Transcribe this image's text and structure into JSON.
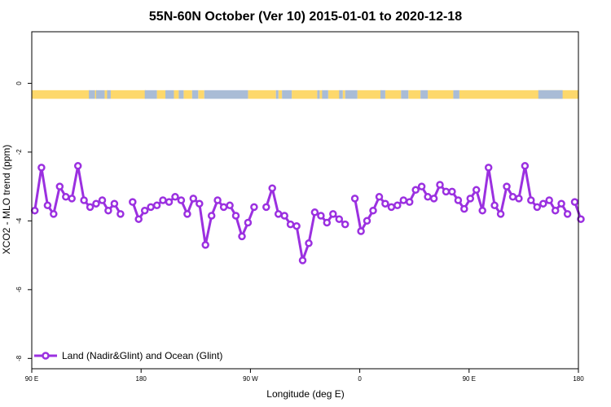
{
  "chart_data": {
    "type": "line",
    "title": "55N-60N October (Ver 10)   2015-01-01 to 2020-12-18",
    "xlabel": "Longitude (deg E)",
    "ylabel": "XCO2 - MLO trend (ppm)",
    "xlim": [
      90,
      540
    ],
    "ylim": [
      -8.3,
      1.5
    ],
    "x_tick_values": [
      90,
      180,
      270,
      360,
      450,
      540
    ],
    "x_tick_labels": [
      "90 E",
      "180",
      "90 W",
      "0",
      "90 E",
      "180"
    ],
    "y_tick_values": [
      0,
      -2,
      -4,
      -6,
      -8
    ],
    "y_tick_labels": [
      "0",
      "-2",
      "-4",
      "-6",
      "-8"
    ],
    "grid": false,
    "legend_position": "bottom-left",
    "colors": {
      "series": "#9b30e0",
      "land": "#fdd86b",
      "ocean": "#a9bcd6"
    },
    "land_ocean_band": {
      "y_top": -0.2,
      "y_bottom": -0.45,
      "land_segments": [
        [
          90,
          138
        ],
        [
          142,
          143.5
        ],
        [
          150,
          152.5
        ],
        [
          155,
          184
        ],
        [
          193,
          200
        ],
        [
          207,
          211
        ],
        [
          215,
          222
        ],
        [
          227,
          232
        ],
        [
          268,
          291
        ],
        [
          293,
          296
        ],
        [
          304,
          325
        ],
        [
          327,
          329.5
        ],
        [
          334,
          343.5
        ],
        [
          346,
          348
        ],
        [
          358,
          378
        ],
        [
          381,
          394
        ],
        [
          400,
          410
        ],
        [
          416,
          437
        ],
        [
          442,
          545
        ]
      ],
      "ocean_segments": [
        [
          137,
          142
        ],
        [
          143,
          150
        ],
        [
          152,
          155
        ],
        [
          183,
          193
        ],
        [
          200,
          207
        ],
        [
          211,
          215
        ],
        [
          222,
          227
        ],
        [
          232,
          268
        ],
        [
          291,
          293
        ],
        [
          296,
          304
        ],
        [
          325,
          327
        ],
        [
          329,
          334
        ],
        [
          343,
          346
        ],
        [
          348,
          358
        ],
        [
          377,
          381
        ],
        [
          394,
          400
        ],
        [
          410,
          416
        ],
        [
          437,
          442
        ],
        [
          507,
          527
        ]
      ]
    },
    "series": [
      {
        "name": "Land (Nadir&Glint) and Ocean (Glint)",
        "segments": [
          [
            [
              92.5,
              -3.7
            ],
            [
              98,
              -2.45
            ],
            [
              103,
              -3.55
            ],
            [
              108,
              -3.8
            ],
            [
              113,
              -3.0
            ],
            [
              118,
              -3.3
            ],
            [
              123,
              -3.35
            ],
            [
              128,
              -2.4
            ],
            [
              133,
              -3.4
            ],
            [
              138,
              -3.6
            ],
            [
              143,
              -3.5
            ],
            [
              148,
              -3.4
            ],
            [
              153,
              -3.7
            ],
            [
              158,
              -3.5
            ],
            [
              163,
              -3.8
            ]
          ],
          [
            [
              173,
              -3.45
            ],
            [
              178,
              -3.95
            ],
            [
              183,
              -3.7
            ],
            [
              188,
              -3.6
            ],
            [
              193,
              -3.55
            ],
            [
              198,
              -3.4
            ],
            [
              203,
              -3.45
            ],
            [
              208,
              -3.3
            ],
            [
              213,
              -3.4
            ],
            [
              218,
              -3.8
            ],
            [
              223,
              -3.35
            ],
            [
              228,
              -3.5
            ],
            [
              233,
              -4.7
            ],
            [
              238,
              -3.85
            ],
            [
              243,
              -3.4
            ],
            [
              248,
              -3.6
            ],
            [
              253,
              -3.55
            ],
            [
              258,
              -3.85
            ],
            [
              263,
              -4.45
            ],
            [
              268,
              -4.05
            ],
            [
              273,
              -3.6
            ]
          ],
          [
            [
              283,
              -3.6
            ],
            [
              288,
              -3.05
            ],
            [
              293,
              -3.8
            ],
            [
              298,
              -3.85
            ],
            [
              303,
              -4.1
            ],
            [
              308,
              -4.15
            ],
            [
              313,
              -5.15
            ],
            [
              318,
              -4.65
            ],
            [
              323,
              -3.75
            ],
            [
              328,
              -3.85
            ],
            [
              333,
              -4.05
            ],
            [
              338,
              -3.8
            ],
            [
              343,
              -3.95
            ],
            [
              348,
              -4.1
            ]
          ],
          [
            [
              356,
              -3.35
            ],
            [
              361,
              -4.3
            ],
            [
              366,
              -4.0
            ],
            [
              371,
              -3.7
            ],
            [
              376,
              -3.3
            ],
            [
              381,
              -3.5
            ],
            [
              386,
              -3.6
            ],
            [
              391,
              -3.55
            ],
            [
              396,
              -3.4
            ],
            [
              401,
              -3.45
            ],
            [
              406,
              -3.1
            ],
            [
              411,
              -3.0
            ],
            [
              416,
              -3.3
            ],
            [
              421,
              -3.35
            ],
            [
              426,
              -2.95
            ],
            [
              431,
              -3.15
            ],
            [
              436,
              -3.15
            ],
            [
              441,
              -3.4
            ],
            [
              446,
              -3.65
            ],
            [
              451,
              -3.35
            ],
            [
              456,
              -3.1
            ],
            [
              461,
              -3.7
            ],
            [
              466,
              -2.45
            ],
            [
              471,
              -3.55
            ],
            [
              476,
              -3.8
            ],
            [
              481,
              -3.0
            ],
            [
              486,
              -3.3
            ],
            [
              491,
              -3.35
            ],
            [
              496,
              -2.4
            ],
            [
              501,
              -3.4
            ],
            [
              506,
              -3.6
            ],
            [
              511,
              -3.5
            ],
            [
              516,
              -3.4
            ],
            [
              521,
              -3.7
            ],
            [
              526,
              -3.5
            ],
            [
              531,
              -3.8
            ]
          ],
          [
            [
              537,
              -3.45
            ],
            [
              542,
              -3.95
            ]
          ]
        ]
      }
    ]
  }
}
